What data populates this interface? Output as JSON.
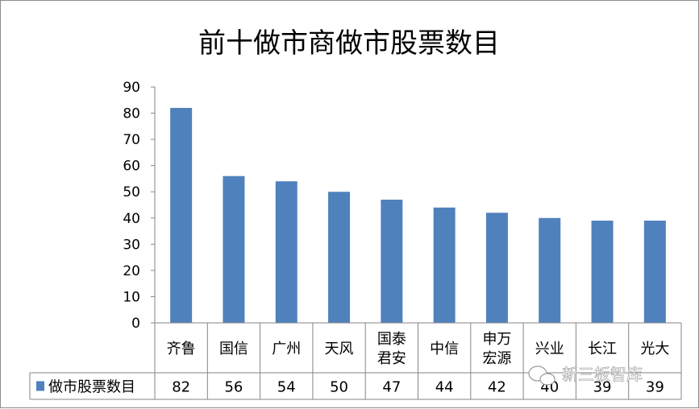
{
  "chart_data": {
    "type": "bar",
    "title": "前十做市商做市股票数目",
    "categories": [
      [
        "齐鲁"
      ],
      [
        "国信"
      ],
      [
        "广州"
      ],
      [
        "天风"
      ],
      [
        "国泰",
        "君安"
      ],
      [
        "中信"
      ],
      [
        "申万",
        "宏源"
      ],
      [
        "兴业"
      ],
      [
        "长江"
      ],
      [
        "光大"
      ]
    ],
    "series": [
      {
        "name": "做市股票数目",
        "values": [
          82,
          56,
          54,
          50,
          47,
          44,
          42,
          40,
          39,
          39
        ],
        "color": "#4f81bd"
      }
    ],
    "ylim": [
      0,
      90
    ],
    "yticks": [
      0,
      10,
      20,
      30,
      40,
      50,
      60,
      70,
      80,
      90
    ],
    "grid": false,
    "legend": "data-table-left",
    "data_table": true
  },
  "watermark": {
    "text": "新三板智库",
    "icon": "wechat-icon"
  }
}
